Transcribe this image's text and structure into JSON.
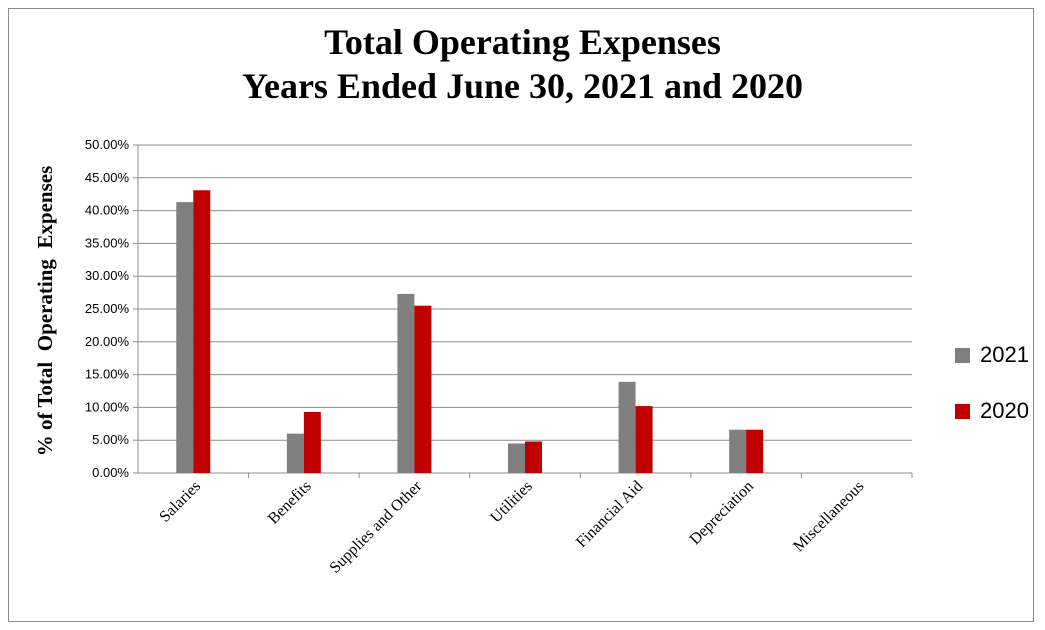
{
  "chart_data": {
    "type": "bar",
    "title": "Total Operating Expenses",
    "subtitle": "Years Ended June 30, 2021 and 2020",
    "xlabel": "",
    "ylabel": "% of Total  Operating  Expenses",
    "categories": [
      "Salaries",
      "Benefits",
      "Supplies and Other",
      "Utilities",
      "Financial Aid",
      "Depreciation",
      "Miscellaneous"
    ],
    "series": [
      {
        "name": "2021",
        "color": "#808080",
        "values": [
          41.3,
          6.0,
          27.3,
          4.5,
          13.9,
          6.6,
          0
        ]
      },
      {
        "name": "2020",
        "color": "#c00000",
        "values": [
          43.1,
          9.3,
          25.5,
          4.8,
          10.2,
          6.6,
          0
        ]
      }
    ],
    "ylim": [
      0,
      50
    ],
    "y_ticks": [
      "0.00%",
      "5.00%",
      "10.00%",
      "15.00%",
      "20.00%",
      "25.00%",
      "30.00%",
      "35.00%",
      "40.00%",
      "45.00%",
      "50.00%"
    ],
    "grid": true,
    "legend_position": "right"
  }
}
